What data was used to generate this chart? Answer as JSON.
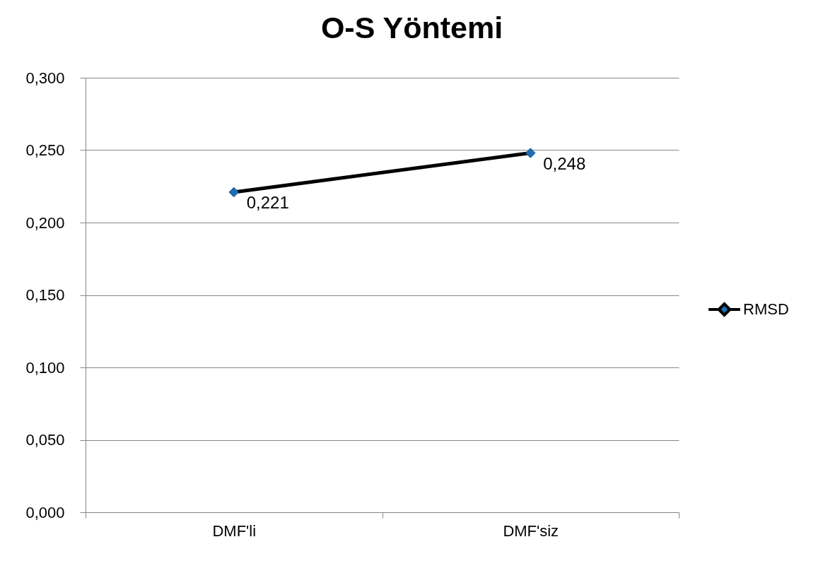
{
  "chart_data": {
    "type": "line",
    "title": "O-S Yöntemi",
    "categories": [
      "DMF'li",
      "DMF'siz"
    ],
    "series": [
      {
        "name": "RMSD",
        "color": "#000000",
        "colors": [
          "#1f6eb4",
          "#1f6eb4"
        ],
        "values": [
          0.221,
          0.248
        ],
        "value_labels": [
          "0,221",
          "0,248"
        ]
      }
    ],
    "ylim": [
      0,
      0.3
    ],
    "yticks": [
      {
        "value": 0,
        "label": "0,000"
      },
      {
        "value": 0.05,
        "label": "0,050"
      },
      {
        "value": 0.1,
        "label": "0,100"
      },
      {
        "value": 0.15,
        "label": "0,150"
      },
      {
        "value": 0.2,
        "label": "0,200"
      },
      {
        "value": 0.25,
        "label": "0,250"
      },
      {
        "value": 0.3,
        "label": "0,300"
      }
    ],
    "grid": "y",
    "legend": "right",
    "marker": "diamond",
    "line_style": "solid"
  }
}
